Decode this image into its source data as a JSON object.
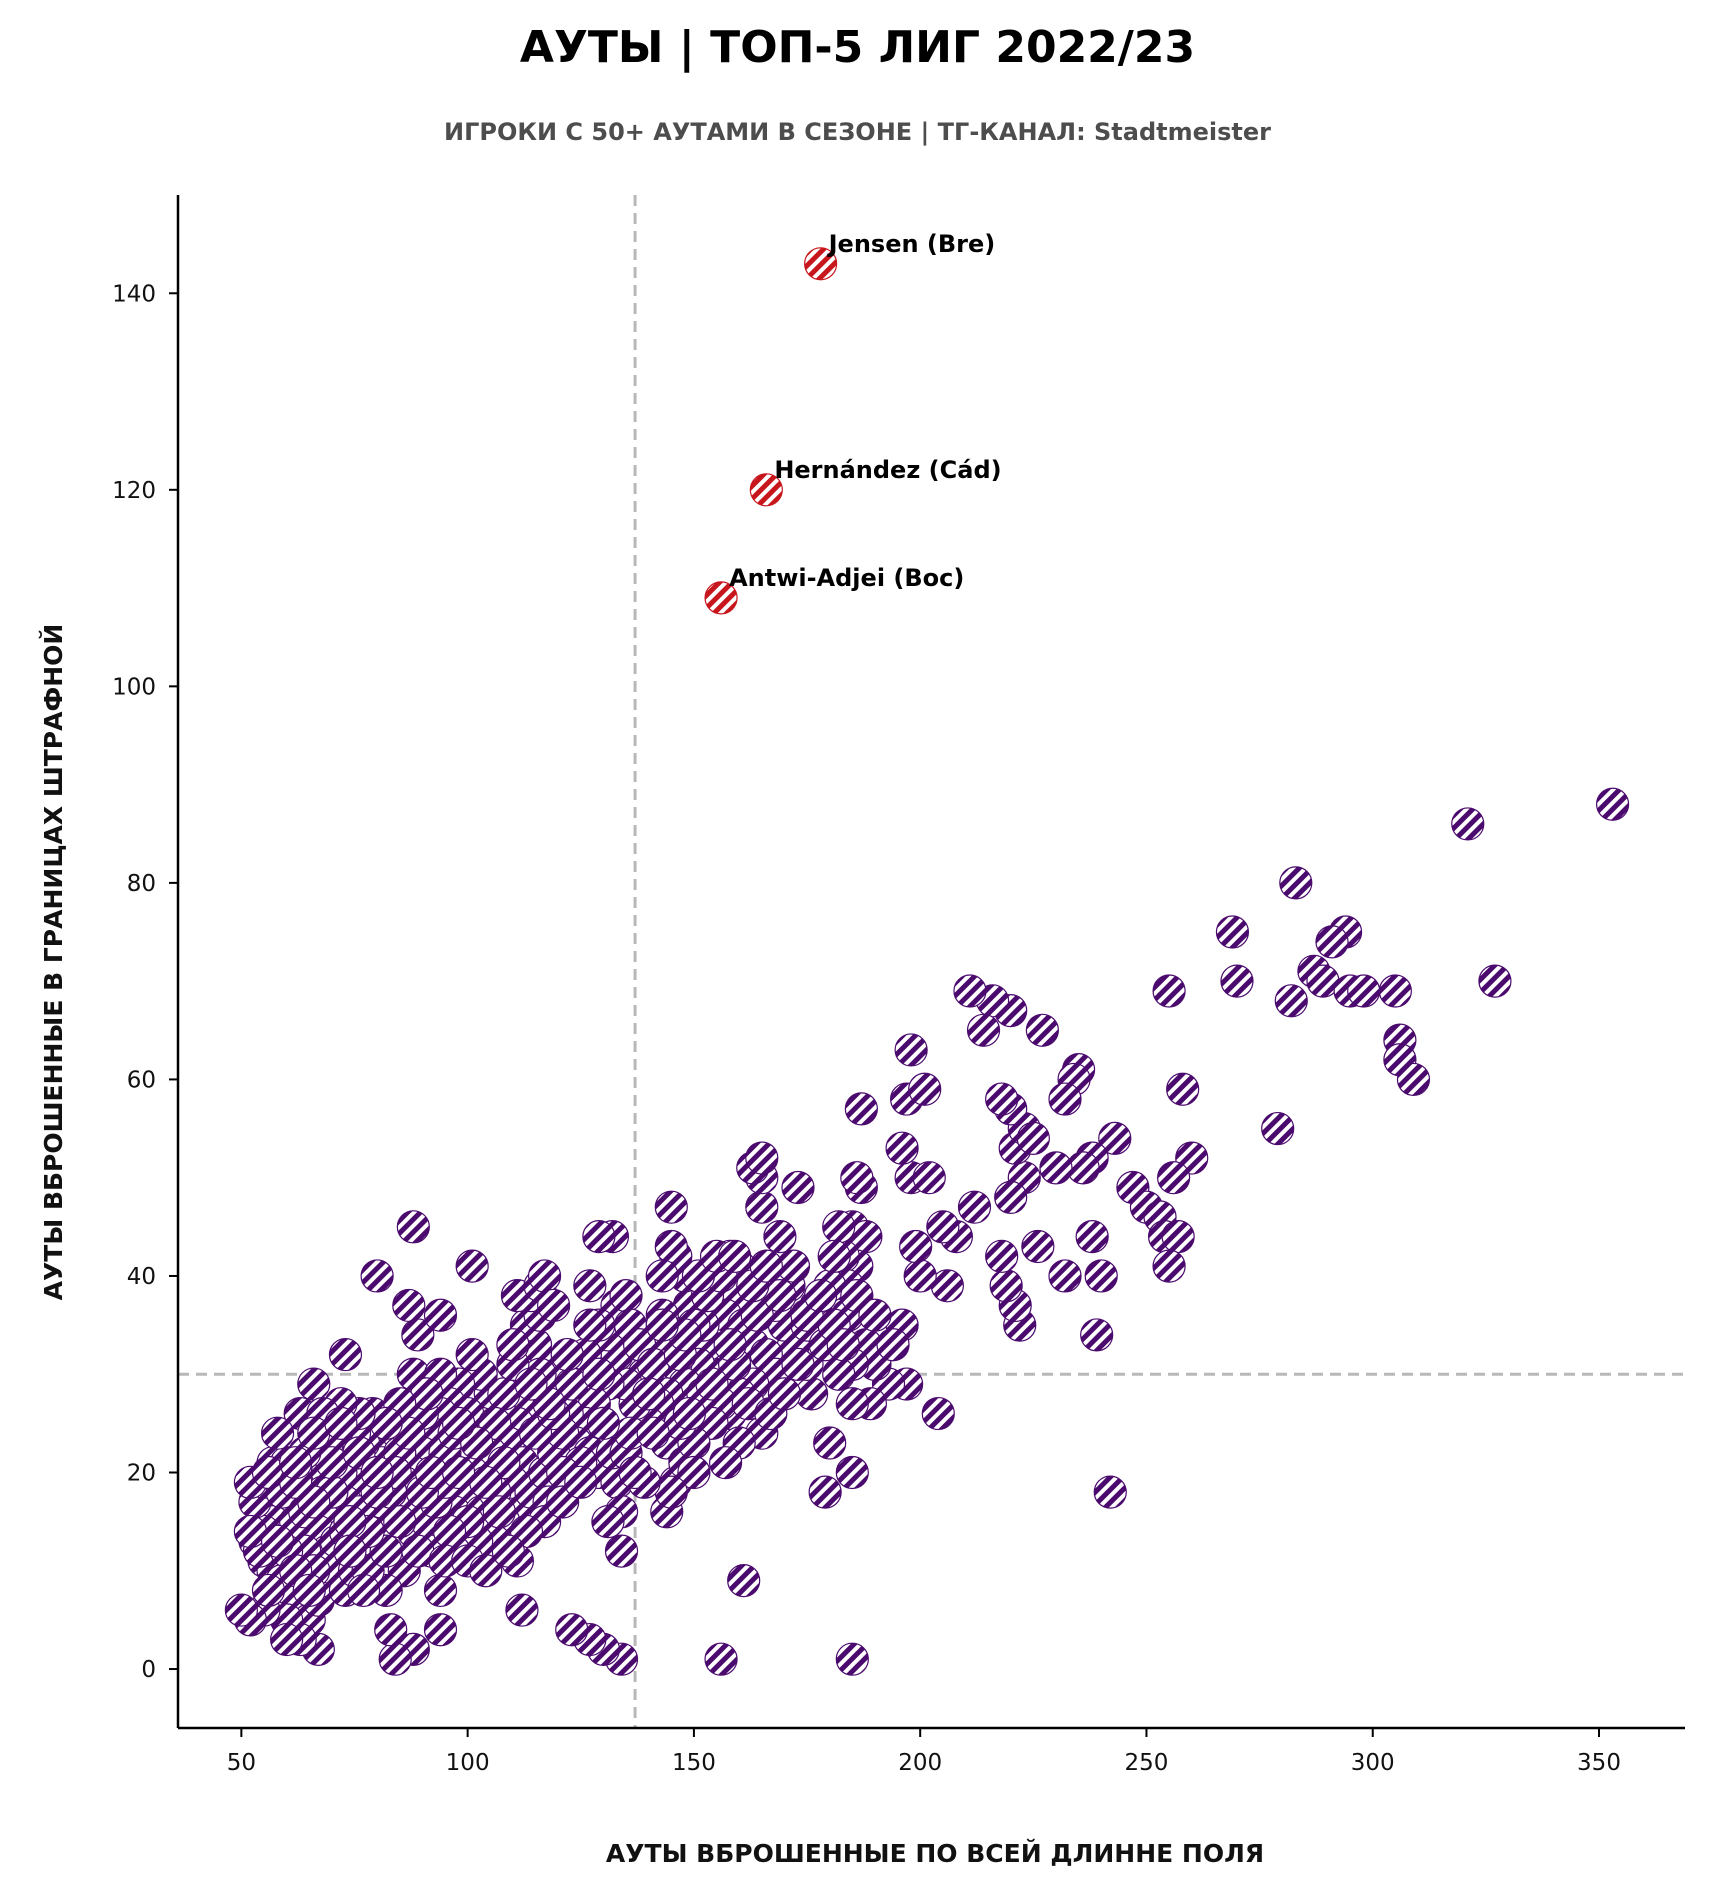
{
  "header": {
    "title": "АУТЫ | ТОП-5 ЛИГ 2022/23",
    "subtitle": "ИГРОКИ С 50+ АУТАМИ В СЕЗОНЕ | ТГ-КАНАЛ: Stadtmeister"
  },
  "colors": {
    "main": "#4b0a6e",
    "highlight": "#c8161d",
    "refline": "#b8b8b8",
    "axis": "#000000"
  },
  "chart_data": {
    "type": "scatter",
    "title": "АУТЫ | ТОП-5 ЛИГ 2022/23",
    "subtitle": "ИГРОКИ С 50+ АУТАМИ В СЕЗОНЕ | ТГ-КАНАЛ: Stadtmeister",
    "xlabel": "АУТЫ ВБРОШЕННЫЕ ПО ВСЕЙ ДЛИННЕ ПОЛЯ",
    "ylabel": "АУТЫ ВБРОШЕННЫЕ В ГРАНИЦАХ ШТРАФНОЙ",
    "xlim": [
      36,
      369
    ],
    "ylim": [
      -6,
      150
    ],
    "xticks": [
      50,
      100,
      150,
      200,
      250,
      300,
      350
    ],
    "yticks": [
      0,
      20,
      40,
      60,
      80,
      100,
      120,
      140
    ],
    "grid": false,
    "reference_lines": {
      "x": 137,
      "y": 30
    },
    "highlighted": [
      {
        "label": "Jensen (Bre)",
        "x": 178,
        "y": 143
      },
      {
        "label": "Hernández (Cád)",
        "x": 166,
        "y": 120
      },
      {
        "label": "Antwi-Adjei (Boc)",
        "x": 156,
        "y": 109
      }
    ],
    "points": [
      [
        353,
        88
      ],
      [
        321,
        86
      ],
      [
        283,
        80
      ],
      [
        269,
        75
      ],
      [
        294,
        75
      ],
      [
        291,
        74
      ],
      [
        270,
        70
      ],
      [
        287,
        71
      ],
      [
        289,
        70
      ],
      [
        295,
        69
      ],
      [
        298,
        69
      ],
      [
        305,
        69
      ],
      [
        327,
        70
      ],
      [
        282,
        68
      ],
      [
        255,
        69
      ],
      [
        306,
        64
      ],
      [
        306,
        62
      ],
      [
        309,
        60
      ],
      [
        258,
        59
      ],
      [
        279,
        55
      ],
      [
        260,
        52
      ],
      [
        256,
        50
      ],
      [
        247,
        49
      ],
      [
        250,
        47
      ],
      [
        253,
        46
      ],
      [
        254,
        44
      ],
      [
        257,
        44
      ],
      [
        255,
        41
      ],
      [
        238,
        44
      ],
      [
        240,
        40
      ],
      [
        239,
        34
      ],
      [
        242,
        18
      ],
      [
        235,
        61
      ],
      [
        234,
        60
      ],
      [
        232,
        58
      ],
      [
        243,
        54
      ],
      [
        238,
        52
      ],
      [
        236,
        51
      ],
      [
        230,
        51
      ],
      [
        232,
        40
      ],
      [
        226,
        43
      ],
      [
        223,
        50
      ],
      [
        222,
        35
      ],
      [
        221,
        37
      ],
      [
        219,
        39
      ],
      [
        218,
        42
      ],
      [
        220,
        48
      ],
      [
        221,
        53
      ],
      [
        223,
        55
      ],
      [
        220,
        57
      ],
      [
        218,
        58
      ],
      [
        225,
        54
      ],
      [
        227,
        65
      ],
      [
        220,
        67
      ],
      [
        216,
        68
      ],
      [
        214,
        65
      ],
      [
        211,
        69
      ],
      [
        212,
        47
      ],
      [
        208,
        44
      ],
      [
        205,
        45
      ],
      [
        206,
        39
      ],
      [
        200,
        40
      ],
      [
        204,
        26
      ],
      [
        199,
        43
      ],
      [
        198,
        50
      ],
      [
        202,
        50
      ],
      [
        196,
        53
      ],
      [
        197,
        58
      ],
      [
        201,
        59
      ],
      [
        198,
        63
      ],
      [
        196,
        35
      ],
      [
        197,
        29
      ],
      [
        193,
        29
      ],
      [
        189,
        27
      ],
      [
        190,
        31
      ],
      [
        188,
        33
      ],
      [
        187,
        49
      ],
      [
        186,
        50
      ],
      [
        187,
        57
      ],
      [
        185,
        45
      ],
      [
        188,
        44
      ],
      [
        186,
        41
      ],
      [
        183,
        42
      ],
      [
        184,
        39
      ],
      [
        182,
        45
      ],
      [
        180,
        39
      ],
      [
        184,
        36
      ],
      [
        185,
        31
      ],
      [
        182,
        30
      ],
      [
        185,
        27
      ],
      [
        180,
        23
      ],
      [
        179,
        18
      ],
      [
        185,
        20
      ],
      [
        185,
        1
      ],
      [
        156,
        1
      ],
      [
        161,
        9
      ],
      [
        176,
        28
      ],
      [
        175,
        31
      ],
      [
        172,
        33
      ],
      [
        170,
        35
      ],
      [
        168,
        37
      ],
      [
        171,
        39
      ],
      [
        169,
        44
      ],
      [
        173,
        49
      ],
      [
        165,
        47
      ],
      [
        165,
        50
      ],
      [
        163,
        51
      ],
      [
        165,
        52
      ],
      [
        162,
        40
      ],
      [
        160,
        41
      ],
      [
        158,
        42
      ],
      [
        159,
        38
      ],
      [
        157,
        36
      ],
      [
        161,
        35
      ],
      [
        163,
        33
      ],
      [
        166,
        32
      ],
      [
        168,
        30
      ],
      [
        163,
        29
      ],
      [
        160,
        28
      ],
      [
        158,
        26
      ],
      [
        156,
        27
      ],
      [
        154,
        25
      ],
      [
        155,
        30
      ],
      [
        153,
        33
      ],
      [
        151,
        31
      ],
      [
        152,
        35
      ],
      [
        149,
        37
      ],
      [
        148,
        40
      ],
      [
        146,
        42
      ],
      [
        145,
        47
      ],
      [
        145,
        43
      ],
      [
        143,
        40
      ],
      [
        142,
        34
      ],
      [
        146,
        31
      ],
      [
        148,
        29
      ],
      [
        144,
        28
      ],
      [
        142,
        27
      ],
      [
        140,
        25
      ],
      [
        144,
        23
      ],
      [
        146,
        19
      ],
      [
        144,
        16
      ],
      [
        148,
        21
      ],
      [
        150,
        23
      ],
      [
        152,
        28
      ],
      [
        150,
        20
      ],
      [
        145,
        18
      ],
      [
        139,
        30
      ],
      [
        137,
        27
      ],
      [
        135,
        29
      ],
      [
        133,
        32
      ],
      [
        131,
        34
      ],
      [
        133,
        37
      ],
      [
        135,
        38
      ],
      [
        132,
        44
      ],
      [
        129,
        44
      ],
      [
        127,
        39
      ],
      [
        129,
        35
      ],
      [
        131,
        29
      ],
      [
        128,
        27
      ],
      [
        126,
        25
      ],
      [
        124,
        23
      ],
      [
        127,
        22
      ],
      [
        129,
        20
      ],
      [
        133,
        19
      ],
      [
        132,
        22
      ],
      [
        134,
        16
      ],
      [
        134,
        12
      ],
      [
        134,
        1
      ],
      [
        130,
        2
      ],
      [
        127,
        3
      ],
      [
        123,
        4
      ],
      [
        112,
        6
      ],
      [
        139,
        19
      ],
      [
        135,
        22
      ],
      [
        122,
        26
      ],
      [
        120,
        28
      ],
      [
        118,
        31
      ],
      [
        115,
        33
      ],
      [
        113,
        35
      ],
      [
        116,
        36
      ],
      [
        114,
        38
      ],
      [
        111,
        38
      ],
      [
        116,
        39
      ],
      [
        117,
        40
      ],
      [
        119,
        37
      ],
      [
        116,
        30
      ],
      [
        113,
        27
      ],
      [
        111,
        25
      ],
      [
        109,
        23
      ],
      [
        112,
        21
      ],
      [
        110,
        19
      ],
      [
        112,
        16
      ],
      [
        114,
        18
      ],
      [
        117,
        20
      ],
      [
        119,
        22
      ],
      [
        121,
        24
      ],
      [
        118,
        17
      ],
      [
        107,
        27
      ],
      [
        105,
        28
      ],
      [
        103,
        30
      ],
      [
        101,
        32
      ],
      [
        103,
        25
      ],
      [
        105,
        22
      ],
      [
        101,
        20
      ],
      [
        99,
        18
      ],
      [
        97,
        16
      ],
      [
        99,
        14
      ],
      [
        103,
        16
      ],
      [
        106,
        18
      ],
      [
        108,
        15
      ],
      [
        106,
        13
      ],
      [
        102,
        13
      ],
      [
        101,
        41
      ],
      [
        98,
        29
      ],
      [
        96,
        27
      ],
      [
        94,
        26
      ],
      [
        92,
        24
      ],
      [
        90,
        22
      ],
      [
        88,
        20
      ],
      [
        86,
        19
      ],
      [
        84,
        17
      ],
      [
        86,
        16
      ],
      [
        88,
        14
      ],
      [
        91,
        15
      ],
      [
        93,
        17
      ],
      [
        95,
        19
      ],
      [
        95,
        22
      ],
      [
        97,
        12
      ],
      [
        94,
        8
      ],
      [
        94,
        4
      ],
      [
        88,
        2
      ],
      [
        84,
        1
      ],
      [
        83,
        4
      ],
      [
        86,
        10
      ],
      [
        82,
        8
      ],
      [
        88,
        30
      ],
      [
        87,
        37
      ],
      [
        89,
        34
      ],
      [
        94,
        36
      ],
      [
        90,
        26
      ],
      [
        88,
        45
      ],
      [
        80,
        40
      ],
      [
        79,
        26
      ],
      [
        81,
        24
      ],
      [
        79,
        22
      ],
      [
        77,
        20
      ],
      [
        75,
        18
      ],
      [
        73,
        17
      ],
      [
        71,
        16
      ],
      [
        69,
        15
      ],
      [
        67,
        14
      ],
      [
        69,
        12
      ],
      [
        71,
        13
      ],
      [
        73,
        14
      ],
      [
        75,
        12
      ],
      [
        77,
        13
      ],
      [
        79,
        15
      ],
      [
        81,
        17
      ],
      [
        83,
        18
      ],
      [
        81,
        21
      ],
      [
        77,
        23
      ],
      [
        75,
        24
      ],
      [
        73,
        32
      ],
      [
        73,
        22
      ],
      [
        71,
        24
      ],
      [
        69,
        23
      ],
      [
        67,
        21
      ],
      [
        65,
        19
      ],
      [
        63,
        18
      ],
      [
        61,
        17
      ],
      [
        59,
        16
      ],
      [
        57,
        15
      ],
      [
        55,
        14
      ],
      [
        53,
        13
      ],
      [
        55,
        11
      ],
      [
        57,
        10
      ],
      [
        59,
        9
      ],
      [
        61,
        8
      ],
      [
        63,
        6
      ],
      [
        65,
        5
      ],
      [
        67,
        7
      ],
      [
        69,
        9
      ],
      [
        71,
        10
      ],
      [
        73,
        8
      ],
      [
        75,
        10
      ],
      [
        67,
        2
      ],
      [
        63,
        3
      ],
      [
        60,
        5
      ],
      [
        55,
        6
      ],
      [
        52,
        5
      ],
      [
        50,
        6
      ],
      [
        53,
        17
      ],
      [
        55,
        19
      ],
      [
        57,
        21
      ],
      [
        60,
        21
      ],
      [
        59,
        18
      ],
      [
        62,
        15
      ],
      [
        64,
        12
      ],
      [
        66,
        10
      ],
      [
        63,
        26
      ],
      [
        66,
        29
      ],
      [
        69,
        20
      ],
      [
        54,
        12
      ],
      [
        52,
        14
      ],
      [
        52,
        19
      ],
      [
        56,
        20
      ],
      [
        60,
        12
      ],
      [
        62,
        10
      ],
      [
        64,
        16
      ],
      [
        68,
        18
      ],
      [
        72,
        20
      ],
      [
        76,
        16
      ],
      [
        78,
        10
      ],
      [
        82,
        12
      ],
      [
        85,
        22
      ],
      [
        90,
        18
      ],
      [
        92,
        12
      ],
      [
        97,
        24
      ],
      [
        100,
        26
      ],
      [
        108,
        28
      ],
      [
        110,
        31
      ],
      [
        115,
        24
      ],
      [
        119,
        26
      ],
      [
        123,
        29
      ],
      [
        126,
        32
      ],
      [
        129,
        30
      ],
      [
        136,
        35
      ],
      [
        138,
        33
      ],
      [
        141,
        31
      ],
      [
        143,
        36
      ],
      [
        147,
        32
      ],
      [
        150,
        35
      ],
      [
        153,
        38
      ],
      [
        156,
        40
      ],
      [
        159,
        31
      ],
      [
        162,
        27
      ],
      [
        165,
        24
      ],
      [
        167,
        26
      ],
      [
        170,
        28
      ],
      [
        173,
        31
      ],
      [
        175,
        35
      ],
      [
        177,
        37
      ],
      [
        179,
        33
      ],
      [
        181,
        35
      ],
      [
        183,
        33
      ],
      [
        160,
        23
      ],
      [
        157,
        21
      ],
      [
        147,
        25
      ],
      [
        140,
        28
      ],
      [
        136,
        24
      ],
      [
        130,
        25
      ],
      [
        125,
        21
      ],
      [
        121,
        20
      ],
      [
        117,
        15
      ],
      [
        113,
        14
      ],
      [
        108,
        21
      ],
      [
        104,
        19
      ],
      [
        100,
        15
      ],
      [
        96,
        14
      ],
      [
        92,
        20
      ],
      [
        87,
        24
      ],
      [
        84,
        20
      ],
      [
        80,
        18
      ],
      [
        78,
        14
      ],
      [
        74,
        15
      ],
      [
        70,
        18
      ],
      [
        66,
        17
      ],
      [
        62,
        19
      ],
      [
        58,
        13
      ],
      [
        56,
        8
      ],
      [
        60,
        3
      ],
      [
        65,
        8
      ],
      [
        74,
        12
      ],
      [
        77,
        8
      ],
      [
        85,
        15
      ],
      [
        89,
        12
      ],
      [
        98,
        20
      ],
      [
        107,
        16
      ],
      [
        111,
        11
      ],
      [
        121,
        17
      ],
      [
        125,
        19
      ],
      [
        131,
        15
      ],
      [
        137,
        20
      ],
      [
        141,
        24
      ],
      [
        149,
        26
      ],
      [
        154,
        29
      ],
      [
        158,
        33
      ],
      [
        164,
        36
      ],
      [
        169,
        38
      ],
      [
        172,
        41
      ],
      [
        175,
        36
      ],
      [
        178,
        38
      ],
      [
        181,
        42
      ],
      [
        186,
        38
      ],
      [
        190,
        36
      ],
      [
        194,
        33
      ],
      [
        148,
        34
      ],
      [
        151,
        40
      ],
      [
        155,
        42
      ],
      [
        159,
        42
      ],
      [
        163,
        39
      ],
      [
        166,
        41
      ],
      [
        143,
        35
      ],
      [
        127,
        35
      ],
      [
        122,
        32
      ],
      [
        118,
        27
      ],
      [
        114,
        29
      ],
      [
        110,
        33
      ],
      [
        106,
        25
      ],
      [
        102,
        23
      ],
      [
        98,
        25
      ],
      [
        94,
        30
      ],
      [
        91,
        28
      ],
      [
        85,
        27
      ],
      [
        82,
        25
      ],
      [
        76,
        26
      ],
      [
        72,
        27
      ],
      [
        70,
        21
      ],
      [
        68,
        26
      ],
      [
        64,
        22
      ],
      [
        58,
        24
      ],
      [
        62,
        21
      ],
      [
        66,
        24
      ],
      [
        72,
        25
      ],
      [
        76,
        22
      ],
      [
        80,
        20
      ],
      [
        95,
        11
      ],
      [
        100,
        11
      ],
      [
        104,
        10
      ],
      [
        109,
        12
      ]
    ]
  }
}
